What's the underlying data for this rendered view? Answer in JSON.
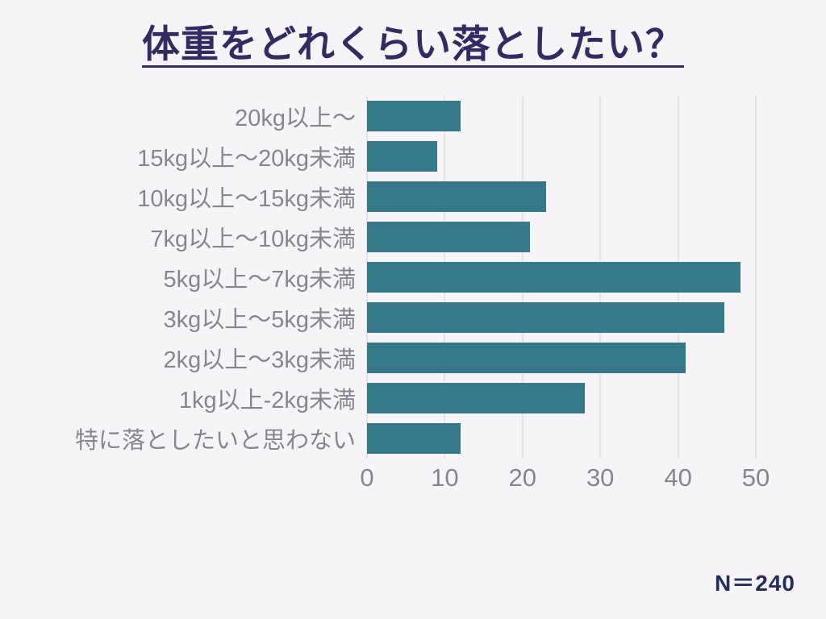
{
  "title": "体重をどれくらい落としたい？",
  "footnote": "N＝240",
  "colors": {
    "background": "#f7f4f7",
    "bar": "#36798a",
    "title": "#332c63",
    "label": "#8a8490",
    "gridline": "#e7e4e9",
    "footnote": "#232e5c"
  },
  "chart_data": {
    "type": "bar",
    "orientation": "horizontal",
    "title": "体重をどれくらい落としたい？",
    "categories": [
      "20kg以上～",
      "15kg以上～20kg未満",
      "10kg以上～15kg未満",
      "7kg以上～10kg未満",
      "5kg以上～7kg未満",
      "3kg以上～5kg未満",
      "2kg以上～3kg未満",
      "1kg以上-2kg未満",
      "特に落としたいと思わない"
    ],
    "values": [
      12,
      9,
      23,
      21,
      48,
      46,
      41,
      28,
      12
    ],
    "xlim": [
      0,
      50
    ],
    "xticks": [
      0,
      10,
      20,
      30,
      40,
      50
    ],
    "xlabel": "",
    "ylabel": "",
    "grid": "vertical",
    "legend": false,
    "sample_size": 240
  }
}
